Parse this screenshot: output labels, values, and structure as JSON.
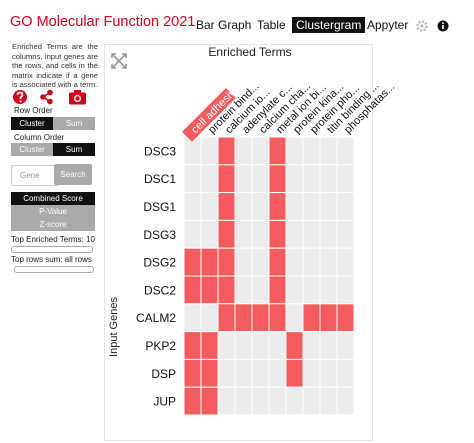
{
  "header": {
    "title": "GO Molecular Function 2021",
    "tabs": [
      "Bar Graph",
      "Table",
      "Clustergram",
      "Appyter"
    ],
    "active_tab": "Clustergram"
  },
  "sidebar": {
    "description": "Enriched Terms are the columns, input genes are the rows, and cells in the matrix indicate if a gene is associated with a term.",
    "row_order": {
      "label": "Row Order",
      "options": [
        "Cluster",
        "Sum"
      ],
      "selected": "Cluster"
    },
    "column_order": {
      "label": "Column Order",
      "options": [
        "Cluster",
        "Sum"
      ],
      "selected": "Sum"
    },
    "search": {
      "placeholder": "Gene",
      "button": "Search"
    },
    "scores": {
      "options": [
        "Combined Score",
        "P-Value",
        "Z-score"
      ],
      "selected": "Combined Score"
    },
    "top_terms": {
      "label": "Top Enriched Terms: 10"
    },
    "top_rows": {
      "label": "Top rows sum: all rows"
    }
  },
  "clustergram": {
    "title": "Enriched Terms",
    "y_label": "Input Genes",
    "columns": [
      "cell adhesiv...",
      "protein bind...",
      "calcium io...",
      "adenylate c...",
      "calcium cha...",
      "metal ion bi...",
      "protein kina...",
      "protein pho...",
      "titin binding ...",
      "phosphatas..."
    ],
    "highlighted_column": 0,
    "rows": [
      "DSC3",
      "DSC1",
      "DSG1",
      "DSG3",
      "DSG2",
      "DSC2",
      "CALM2",
      "PKP2",
      "DSP",
      "JUP"
    ],
    "matrix": [
      [
        0,
        0,
        1,
        0,
        0,
        1,
        0,
        0,
        0,
        0
      ],
      [
        0,
        0,
        1,
        0,
        0,
        1,
        0,
        0,
        0,
        0
      ],
      [
        0,
        0,
        1,
        0,
        0,
        1,
        0,
        0,
        0,
        0
      ],
      [
        0,
        0,
        1,
        0,
        0,
        1,
        0,
        0,
        0,
        0
      ],
      [
        1,
        1,
        1,
        0,
        0,
        1,
        0,
        0,
        0,
        0
      ],
      [
        1,
        1,
        1,
        0,
        0,
        1,
        0,
        0,
        0,
        0
      ],
      [
        0,
        0,
        1,
        1,
        1,
        1,
        0,
        1,
        1,
        1
      ],
      [
        1,
        1,
        0,
        0,
        0,
        0,
        1,
        0,
        0,
        0
      ],
      [
        1,
        1,
        0,
        0,
        0,
        0,
        1,
        0,
        0,
        0
      ],
      [
        1,
        1,
        0,
        0,
        0,
        0,
        0,
        0,
        0,
        0
      ]
    ]
  }
}
